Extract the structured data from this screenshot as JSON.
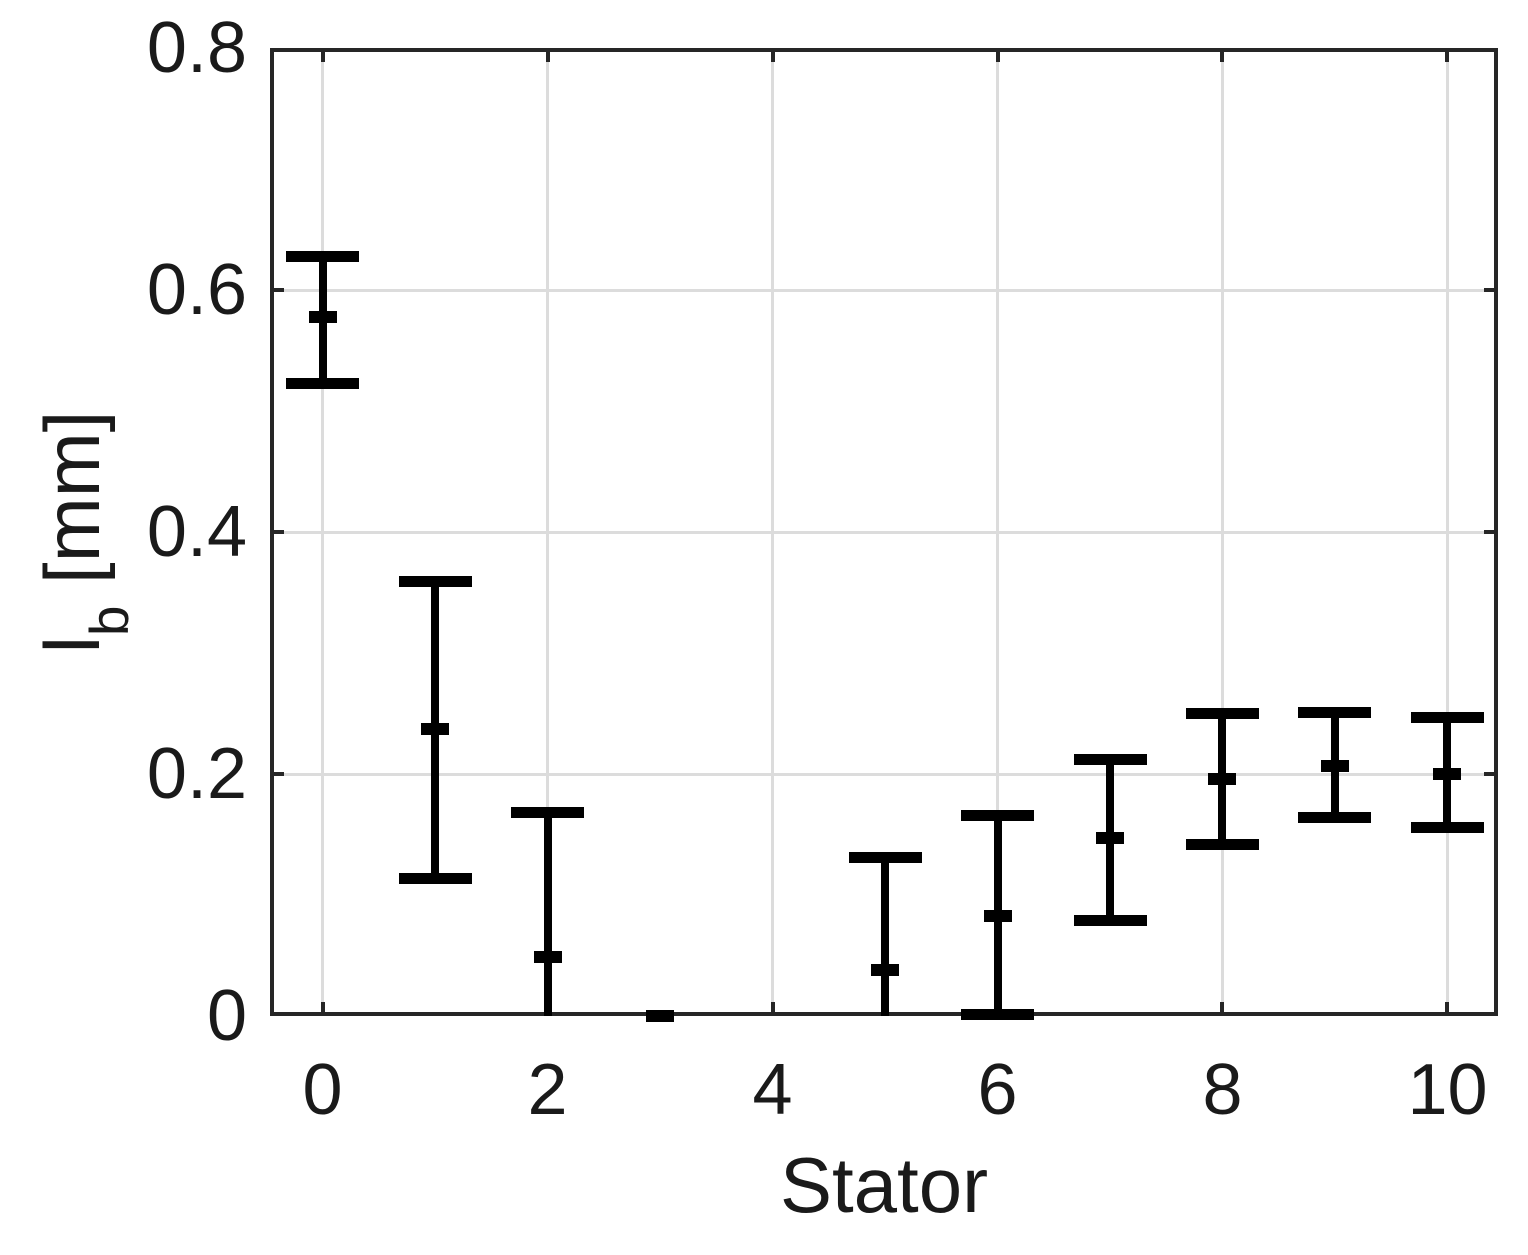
{
  "chart_data": {
    "type": "scatter",
    "subtype": "errorbar",
    "title": "",
    "xlabel": "Stator",
    "ylabel": {
      "pre": "l",
      "sub": "b",
      "post": " [mm]"
    },
    "xlim": [
      -0.467,
      10.449
    ],
    "ylim": [
      0,
      0.8
    ],
    "xticks": [
      0,
      2,
      4,
      6,
      8,
      10
    ],
    "xtick_labels": [
      "0",
      "2",
      "4",
      "6",
      "8",
      "10"
    ],
    "yticks": [
      0,
      0.2,
      0.4,
      0.6,
      0.8
    ],
    "ytick_labels": [
      "0",
      "0.2",
      "0.4",
      "0.6",
      "0.8"
    ],
    "grid": true,
    "legend": null,
    "points": [
      {
        "stator": 0,
        "value": 0.578,
        "upper": 0.628,
        "lower": 0.523,
        "cap_top": true,
        "cap_bottom": true
      },
      {
        "stator": 1,
        "value": 0.237,
        "upper": 0.359,
        "lower": 0.114,
        "cap_top": true,
        "cap_bottom": true
      },
      {
        "stator": 2,
        "value": 0.049,
        "upper": 0.168,
        "lower": 0.0,
        "cap_top": true,
        "cap_bottom": false
      },
      {
        "stator": 3,
        "value": 0.0,
        "upper": null,
        "lower": null,
        "cap_top": false,
        "cap_bottom": false
      },
      {
        "stator": 5,
        "value": 0.038,
        "upper": 0.131,
        "lower": 0.0,
        "cap_top": true,
        "cap_bottom": false
      },
      {
        "stator": 6,
        "value": 0.083,
        "upper": 0.166,
        "lower": 0.001,
        "cap_top": true,
        "cap_bottom": true
      },
      {
        "stator": 7,
        "value": 0.147,
        "upper": 0.212,
        "lower": 0.079,
        "cap_top": true,
        "cap_bottom": true
      },
      {
        "stator": 8,
        "value": 0.196,
        "upper": 0.25,
        "lower": 0.142,
        "cap_top": true,
        "cap_bottom": true
      },
      {
        "stator": 9,
        "value": 0.207,
        "upper": 0.251,
        "lower": 0.164,
        "cap_top": true,
        "cap_bottom": true
      },
      {
        "stator": 10,
        "value": 0.2,
        "upper": 0.247,
        "lower": 0.156,
        "cap_top": true,
        "cap_bottom": true
      }
    ]
  },
  "colors": {
    "errorbar": "#000000",
    "frame": "#262626",
    "grid": "#dcdcdc",
    "text": "#1a1a1a",
    "background": "#ffffff"
  }
}
